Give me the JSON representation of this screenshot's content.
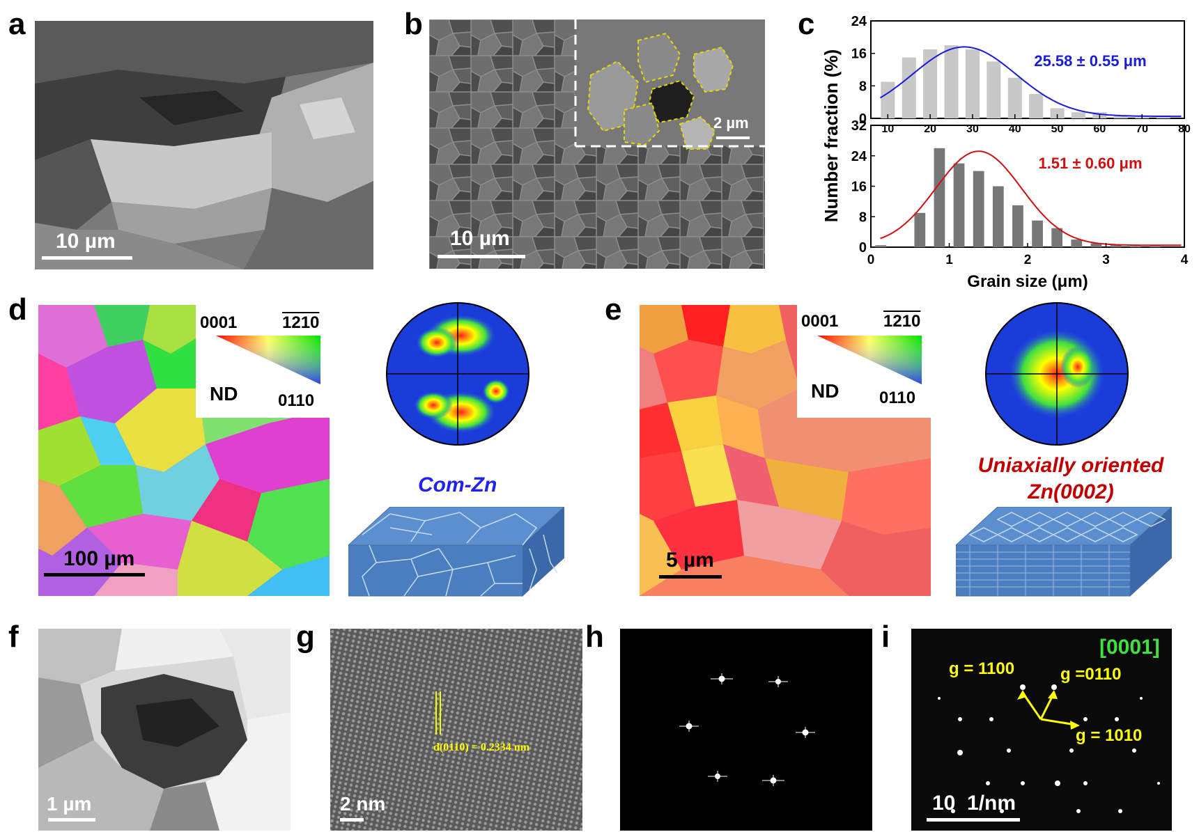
{
  "panels": {
    "a": {
      "label": "a",
      "scale": "10 µm"
    },
    "b": {
      "label": "b",
      "scale": "10 µm",
      "inset_scale": "2 µm"
    },
    "c": {
      "label": "c"
    },
    "d": {
      "label": "d",
      "scale": "100 µm",
      "key_0001": "0001",
      "key_1210": "1210",
      "key_0110": "0110",
      "key_nd": "ND",
      "caption": "Com-Zn"
    },
    "e": {
      "label": "e",
      "scale": "5 µm",
      "key_0001": "0001",
      "key_1210": "1210",
      "key_0110": "0110",
      "key_nd": "ND",
      "caption_line1": "Uniaxially oriented",
      "caption_line2": "Zn(0002)"
    },
    "f": {
      "label": "f",
      "scale": "1 µm"
    },
    "g": {
      "label": "g",
      "scale": "2 nm",
      "dspacing": "d(0110) = 0.2334 nm"
    },
    "h": {
      "label": "h"
    },
    "i": {
      "label": "i",
      "scale": "10  1/nm",
      "zone": "[0001]",
      "g1": "g = 1100",
      "g2": "g =0110",
      "g3": "g = 1010"
    }
  },
  "chart_data": [
    {
      "type": "bar",
      "title": "",
      "xlabel": "",
      "ylabel": "Number fraction (%)",
      "x": [
        10,
        15,
        20,
        25,
        30,
        35,
        40,
        45,
        50,
        55,
        60,
        65,
        70,
        75
      ],
      "values": [
        9,
        15,
        17,
        18,
        17,
        14,
        10,
        6,
        2.5,
        1.5,
        1.5,
        0.5,
        0.3,
        0.5
      ],
      "xlim": [
        6,
        80
      ],
      "ylim": [
        0,
        24
      ],
      "xticks": [
        "10",
        "20",
        "30",
        "40",
        "50",
        "60",
        "70",
        "80"
      ],
      "yticks": [
        "0",
        "8",
        "16",
        "24"
      ],
      "fit": "gaussian",
      "annotation": "25.58 ± 0.55 μm",
      "bar_color": "#c8c8c8",
      "fit_color": "#1a1ad8"
    },
    {
      "type": "bar",
      "title": "",
      "xlabel": "Grain size (μm)",
      "ylabel": "Number fraction (%)",
      "x": [
        0.125,
        0.625,
        0.875,
        1.125,
        1.375,
        1.625,
        1.875,
        2.125,
        2.375,
        2.625,
        2.875,
        3.125,
        3.375,
        3.625
      ],
      "values": [
        0.5,
        9,
        26,
        22,
        20,
        16,
        11,
        7,
        5,
        2,
        1,
        0.5,
        0.3,
        0.3
      ],
      "xlim": [
        0,
        4
      ],
      "ylim": [
        0,
        32
      ],
      "xticks": [
        "0",
        "1",
        "2",
        "3",
        "4"
      ],
      "yticks": [
        "0",
        "8",
        "16",
        "24",
        "32"
      ],
      "fit": "gaussian",
      "annotation": "1.51 ± 0.60 μm",
      "bar_color": "#777777",
      "fit_color": "#d01010"
    }
  ]
}
